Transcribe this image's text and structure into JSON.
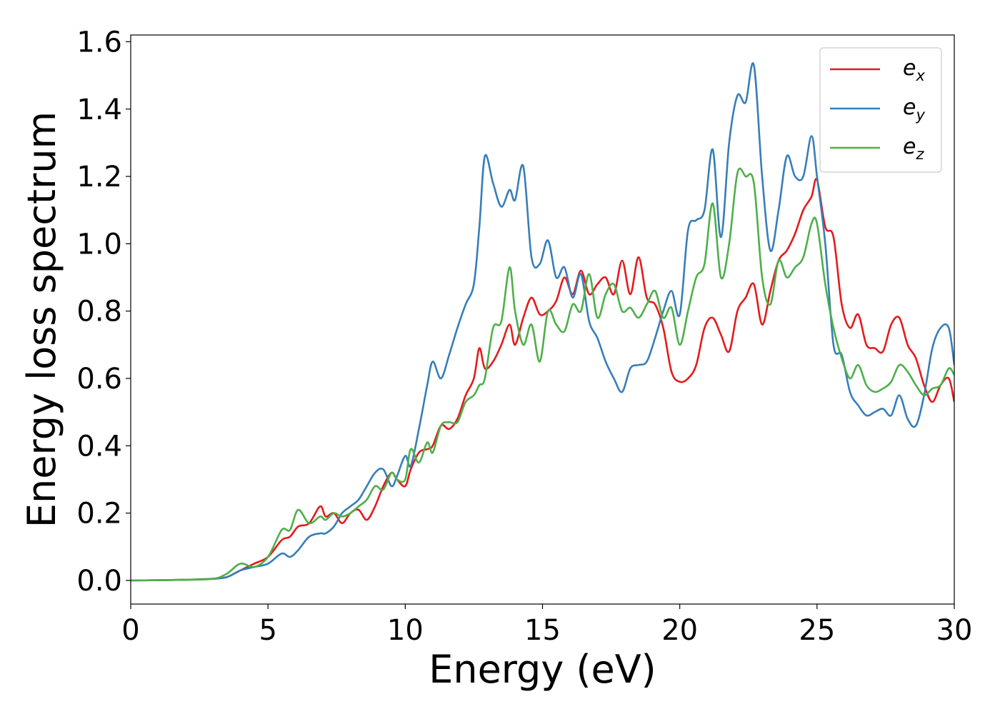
{
  "chart_data": {
    "type": "line",
    "title": "",
    "xlabel": "Energy (eV)",
    "ylabel": "Energy loss spectrum",
    "xlim": [
      0,
      30
    ],
    "ylim": [
      -0.07,
      1.62
    ],
    "xticks": [
      0,
      5,
      10,
      15,
      20,
      25,
      30
    ],
    "xtick_labels": [
      "0",
      "5",
      "10",
      "15",
      "20",
      "25",
      "30"
    ],
    "yticks": [
      0.0,
      0.2,
      0.4,
      0.6,
      0.8,
      1.0,
      1.2,
      1.4,
      1.6
    ],
    "ytick_labels": [
      "0.0",
      "0.2",
      "0.4",
      "0.6",
      "0.8",
      "1.0",
      "1.2",
      "1.4",
      "1.6"
    ],
    "grid": false,
    "legend_position": "top-right",
    "series": [
      {
        "name": "e_x",
        "label_base": "e",
        "label_sub": "x",
        "color": "#e41a1c",
        "x": [
          0,
          2,
          3,
          3.5,
          4,
          4.5,
          5,
          5.5,
          5.8,
          6.1,
          6.5,
          6.9,
          7.1,
          7.4,
          7.7,
          8.0,
          8.3,
          8.6,
          8.9,
          9.2,
          9.5,
          9.7,
          10.0,
          10.2,
          10.5,
          10.8,
          11.0,
          11.3,
          11.6,
          11.9,
          12.2,
          12.5,
          12.7,
          12.9,
          13.2,
          13.5,
          13.8,
          14.0,
          14.3,
          14.6,
          14.9,
          15.2,
          15.5,
          15.8,
          16.1,
          16.4,
          16.7,
          17.0,
          17.3,
          17.6,
          17.9,
          18.2,
          18.5,
          18.8,
          19.1,
          19.4,
          19.7,
          20.0,
          20.3,
          20.6,
          20.9,
          21.2,
          21.5,
          21.8,
          22.1,
          22.4,
          22.7,
          23.0,
          23.3,
          23.6,
          23.9,
          24.2,
          24.5,
          24.8,
          25.0,
          25.3,
          25.6,
          25.9,
          26.2,
          26.5,
          26.8,
          27.1,
          27.4,
          27.7,
          28.0,
          28.3,
          28.6,
          28.9,
          29.2,
          29.5,
          29.8,
          30.0
        ],
        "y": [
          0.0,
          0.002,
          0.005,
          0.01,
          0.03,
          0.05,
          0.07,
          0.12,
          0.13,
          0.16,
          0.17,
          0.22,
          0.19,
          0.2,
          0.17,
          0.2,
          0.21,
          0.18,
          0.22,
          0.28,
          0.32,
          0.3,
          0.28,
          0.33,
          0.38,
          0.39,
          0.4,
          0.46,
          0.45,
          0.48,
          0.55,
          0.6,
          0.69,
          0.63,
          0.65,
          0.7,
          0.76,
          0.7,
          0.78,
          0.84,
          0.79,
          0.8,
          0.83,
          0.9,
          0.85,
          0.92,
          0.85,
          0.88,
          0.9,
          0.85,
          0.95,
          0.85,
          0.96,
          0.84,
          0.82,
          0.75,
          0.62,
          0.59,
          0.6,
          0.64,
          0.75,
          0.78,
          0.73,
          0.68,
          0.8,
          0.84,
          0.88,
          0.76,
          0.86,
          0.95,
          0.98,
          1.03,
          1.1,
          1.14,
          1.19,
          1.05,
          1.02,
          0.82,
          0.75,
          0.79,
          0.7,
          0.69,
          0.68,
          0.76,
          0.78,
          0.7,
          0.66,
          0.58,
          0.53,
          0.58,
          0.6,
          0.53
        ]
      },
      {
        "name": "e_y",
        "label_base": "e",
        "label_sub": "y",
        "color": "#377eb8",
        "x": [
          0,
          2,
          3,
          3.5,
          4,
          4.5,
          5,
          5.5,
          5.8,
          6.1,
          6.5,
          6.9,
          7.1,
          7.4,
          7.7,
          8.0,
          8.3,
          8.6,
          8.9,
          9.2,
          9.5,
          9.7,
          10.0,
          10.2,
          10.5,
          10.8,
          11.0,
          11.3,
          11.6,
          11.9,
          12.2,
          12.5,
          12.7,
          12.9,
          13.2,
          13.5,
          13.8,
          14.0,
          14.3,
          14.6,
          14.9,
          15.2,
          15.5,
          15.8,
          16.1,
          16.4,
          16.7,
          17.0,
          17.3,
          17.6,
          17.9,
          18.2,
          18.5,
          18.8,
          19.1,
          19.4,
          19.7,
          20.0,
          20.3,
          20.6,
          20.9,
          21.2,
          21.5,
          21.8,
          22.1,
          22.4,
          22.7,
          23.0,
          23.3,
          23.6,
          23.9,
          24.2,
          24.5,
          24.8,
          25.0,
          25.3,
          25.6,
          25.9,
          26.2,
          26.5,
          26.8,
          27.1,
          27.4,
          27.7,
          28.0,
          28.3,
          28.6,
          28.9,
          29.2,
          29.5,
          29.8,
          30.0
        ],
        "y": [
          0.0,
          0.002,
          0.005,
          0.01,
          0.03,
          0.04,
          0.05,
          0.08,
          0.07,
          0.09,
          0.13,
          0.14,
          0.14,
          0.16,
          0.2,
          0.22,
          0.24,
          0.28,
          0.32,
          0.33,
          0.28,
          0.31,
          0.37,
          0.34,
          0.45,
          0.58,
          0.65,
          0.6,
          0.67,
          0.75,
          0.82,
          0.88,
          1.05,
          1.26,
          1.18,
          1.11,
          1.16,
          1.13,
          1.23,
          0.96,
          0.94,
          1.01,
          0.9,
          0.93,
          0.84,
          0.91,
          0.77,
          0.72,
          0.65,
          0.6,
          0.56,
          0.63,
          0.64,
          0.65,
          0.72,
          0.8,
          0.86,
          0.79,
          1.04,
          1.07,
          1.1,
          1.28,
          1.02,
          1.3,
          1.44,
          1.42,
          1.53,
          1.2,
          0.98,
          1.1,
          1.26,
          1.2,
          1.2,
          1.32,
          1.2,
          1.0,
          0.7,
          0.67,
          0.56,
          0.52,
          0.49,
          0.5,
          0.51,
          0.49,
          0.55,
          0.48,
          0.46,
          0.55,
          0.69,
          0.75,
          0.75,
          0.64
        ]
      },
      {
        "name": "e_z",
        "label_base": "e",
        "label_sub": "z",
        "color": "#4daf4a",
        "x": [
          0,
          2,
          3,
          3.5,
          4,
          4.5,
          5,
          5.5,
          5.8,
          6.1,
          6.5,
          6.9,
          7.1,
          7.4,
          7.7,
          8.0,
          8.3,
          8.6,
          8.9,
          9.2,
          9.5,
          9.7,
          10.0,
          10.2,
          10.5,
          10.8,
          11.0,
          11.3,
          11.6,
          11.9,
          12.2,
          12.5,
          12.7,
          12.9,
          13.2,
          13.5,
          13.8,
          14.0,
          14.3,
          14.6,
          14.9,
          15.2,
          15.5,
          15.8,
          16.1,
          16.4,
          16.7,
          17.0,
          17.3,
          17.6,
          17.9,
          18.2,
          18.5,
          18.8,
          19.1,
          19.4,
          19.7,
          20.0,
          20.3,
          20.6,
          20.9,
          21.2,
          21.5,
          21.8,
          22.1,
          22.4,
          22.7,
          23.0,
          23.3,
          23.6,
          23.9,
          24.2,
          24.5,
          24.8,
          25.0,
          25.3,
          25.6,
          25.9,
          26.2,
          26.5,
          26.8,
          27.1,
          27.4,
          27.7,
          28.0,
          28.3,
          28.6,
          28.9,
          29.2,
          29.5,
          29.8,
          30.0
        ],
        "y": [
          0.0,
          0.002,
          0.005,
          0.02,
          0.05,
          0.04,
          0.07,
          0.15,
          0.15,
          0.21,
          0.17,
          0.19,
          0.18,
          0.2,
          0.19,
          0.2,
          0.22,
          0.24,
          0.28,
          0.27,
          0.32,
          0.3,
          0.3,
          0.39,
          0.35,
          0.41,
          0.38,
          0.46,
          0.47,
          0.47,
          0.53,
          0.55,
          0.58,
          0.6,
          0.75,
          0.77,
          0.93,
          0.8,
          0.7,
          0.76,
          0.65,
          0.8,
          0.76,
          0.74,
          0.82,
          0.8,
          0.91,
          0.78,
          0.85,
          0.88,
          0.8,
          0.81,
          0.78,
          0.82,
          0.86,
          0.78,
          0.81,
          0.7,
          0.8,
          0.9,
          0.94,
          1.12,
          0.9,
          1.0,
          1.21,
          1.2,
          1.18,
          0.9,
          0.82,
          0.95,
          0.9,
          0.93,
          0.96,
          1.06,
          1.06,
          0.88,
          0.75,
          0.66,
          0.6,
          0.64,
          0.58,
          0.56,
          0.57,
          0.59,
          0.64,
          0.62,
          0.58,
          0.55,
          0.57,
          0.58,
          0.63,
          0.61
        ]
      }
    ]
  }
}
